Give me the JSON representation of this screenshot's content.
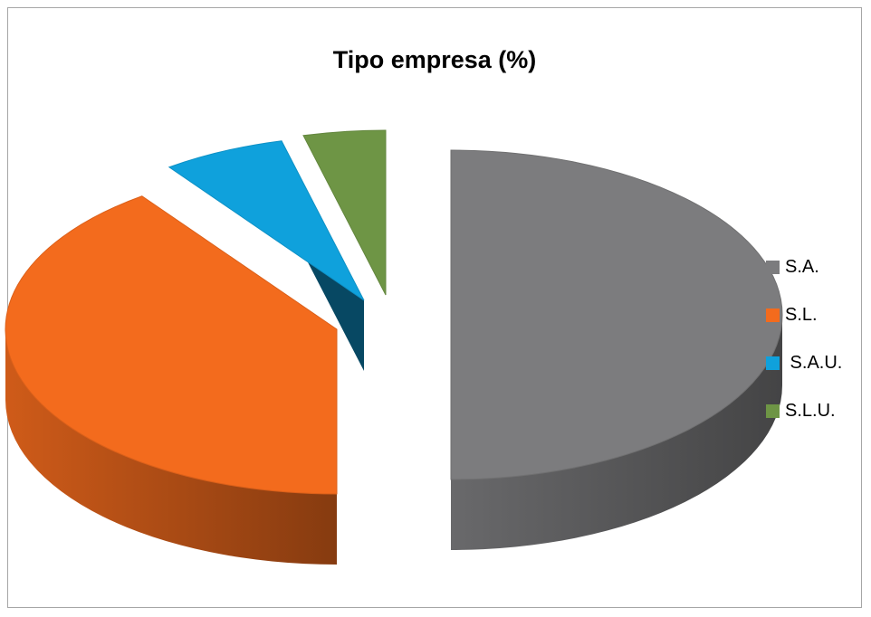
{
  "chart_data": {
    "type": "pie",
    "title": "Tipo empresa (%)",
    "categories": [
      "S.A.",
      "S.L.",
      " S.A.U.",
      "S.L.U."
    ],
    "values": [
      50,
      40,
      6,
      4
    ],
    "colors": [
      "#7c7c7e",
      "#f36b1d",
      "#0fa1dc",
      "#6e9545"
    ],
    "legend_position": "right",
    "style": "3d-exploded"
  }
}
